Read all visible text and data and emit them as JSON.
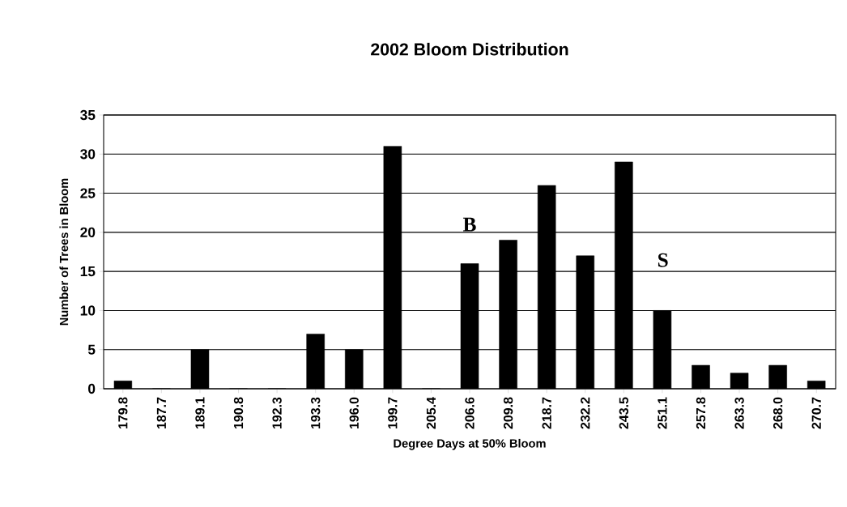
{
  "chart_data": {
    "type": "bar",
    "title": "2002 Bloom Distribution",
    "xlabel": "Degree Days at 50% Bloom",
    "ylabel": "Number of Trees in Bloom",
    "categories": [
      "179.8",
      "187.7",
      "189.1",
      "190.8",
      "192.3",
      "193.3",
      "196.0",
      "199.7",
      "205.4",
      "206.6",
      "209.8",
      "218.7",
      "232.2",
      "243.5",
      "251.1",
      "257.8",
      "263.3",
      "268.0",
      "270.7"
    ],
    "values": [
      1,
      0,
      5,
      0,
      0,
      7,
      5,
      31,
      0,
      16,
      19,
      26,
      17,
      29,
      10,
      3,
      2,
      3,
      1
    ],
    "color": "#000000",
    "ylim": [
      0,
      35
    ],
    "yticks": [
      0,
      5,
      10,
      15,
      20,
      25,
      30,
      35
    ],
    "grid": "y",
    "annotations": [
      "B",
      "S"
    ]
  }
}
